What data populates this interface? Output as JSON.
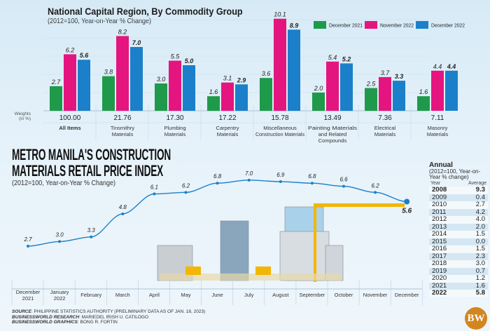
{
  "chart_data": [
    {
      "type": "bar",
      "title": "National Capital Region, By Commodity Group",
      "subtitle": "(2012=100, Year-on-Year % Change)",
      "categories": [
        "All Items",
        "Tinsmithry Materials",
        "Plumbing Materials",
        "Carpentry Materials",
        "Miscellaneous Construction Materials",
        "Painting Materials and Related Compounds",
        "Electrical Materials",
        "Masonry Materials"
      ],
      "category_lines": [
        [
          "All Items"
        ],
        [
          "Tinsmithry",
          "Materials"
        ],
        [
          "Plumbing",
          "Materials"
        ],
        [
          "Carpentry",
          "Materials"
        ],
        [
          "Miscellaneous",
          "Construction Materials"
        ],
        [
          "Painting Materials",
          "and Related",
          "Compounds"
        ],
        [
          "Electrical",
          "Materials"
        ],
        [
          "Masonry",
          "Materials"
        ]
      ],
      "weights_label": [
        "Weights",
        "(in %)"
      ],
      "weights": [
        "100.00",
        "21.76",
        "17.30",
        "17.22",
        "15.78",
        "13.49",
        "7.36",
        "7.11"
      ],
      "series": [
        {
          "name": "December 2021",
          "color": "#1f9a4b",
          "values": [
            2.7,
            3.8,
            3.0,
            1.6,
            3.6,
            2.0,
            2.5,
            1.6
          ]
        },
        {
          "name": "November 2022",
          "color": "#e4157f",
          "values": [
            6.2,
            8.2,
            5.5,
            3.1,
            10.1,
            5.4,
            3.7,
            4.4
          ]
        },
        {
          "name": "December 2022",
          "color": "#1b80c9",
          "values": [
            5.6,
            7.0,
            5.0,
            2.9,
            8.9,
            5.2,
            3.3,
            4.4
          ]
        }
      ],
      "legend_position": "top-right",
      "grid": true
    },
    {
      "type": "line",
      "title": "METRO MANILA'S CONSTRUCTION MATERIALS RETAIL PRICE INDEX",
      "title_lines": [
        "METRO MANILA'S CONSTRUCTION",
        "MATERIALS RETAIL PRICE INDEX"
      ],
      "subtitle": "(2012=100, Year-on-Year % Change)",
      "categories": [
        "December 2021",
        "January 2022",
        "February",
        "March",
        "April",
        "May",
        "June",
        "July",
        "August",
        "September",
        "October",
        "November",
        "December"
      ],
      "category_lines": [
        [
          "December",
          "2021"
        ],
        [
          "January",
          "2022"
        ],
        [
          "February"
        ],
        [
          "March"
        ],
        [
          "April"
        ],
        [
          "May"
        ],
        [
          "June"
        ],
        [
          "July"
        ],
        [
          "August"
        ],
        [
          "September"
        ],
        [
          "October"
        ],
        [
          "November"
        ],
        [
          "December"
        ]
      ],
      "values": [
        2.7,
        3.0,
        3.3,
        4.8,
        6.1,
        6.2,
        6.8,
        7.0,
        6.9,
        6.8,
        6.6,
        6.2,
        5.6
      ],
      "labels": [
        "2.7",
        "3.0",
        "3.3",
        "4.8",
        "6.1",
        "6.2",
        "6.8",
        "7.0",
        "6.9",
        "6.8",
        "6.6",
        "6.2",
        "5.6"
      ],
      "line_color": "#1b80c9"
    },
    {
      "type": "table",
      "title": "Annual",
      "subtitle": "(2012=100, Year-on-Year % change)",
      "columns": [
        "Year",
        "Average"
      ],
      "rows": [
        [
          "2008",
          "9.3"
        ],
        [
          "2009",
          "0.4"
        ],
        [
          "2010",
          "2.7"
        ],
        [
          "2011",
          "4.2"
        ],
        [
          "2012",
          "4.0"
        ],
        [
          "2013",
          "2.0"
        ],
        [
          "2014",
          "1.5"
        ],
        [
          "2015",
          "0.0"
        ],
        [
          "2016",
          "1.5"
        ],
        [
          "2017",
          "2.3"
        ],
        [
          "2018",
          "3.0"
        ],
        [
          "2019",
          "0.7"
        ],
        [
          "2020",
          "1.2"
        ],
        [
          "2021",
          "1.6"
        ],
        [
          "2022",
          "5.8"
        ]
      ]
    }
  ],
  "footer": {
    "source_label": "SOURCE",
    "source_text": ": PHILIPPINE STATISTICS AUTHORITY (PRELIMINARY DATA AS OF JAN. 18, 2023)",
    "research_label": "BUSINESSWORLD RESEARCH",
    "research_text": ": MARIEDEL IRISH U. CATILOGO",
    "graphics_label": "BUSINESSWORLD GRAPHICS",
    "graphics_text": ": BONG R. FORTIN"
  },
  "logo": {
    "text": "BW",
    "color": "#d2861f"
  }
}
